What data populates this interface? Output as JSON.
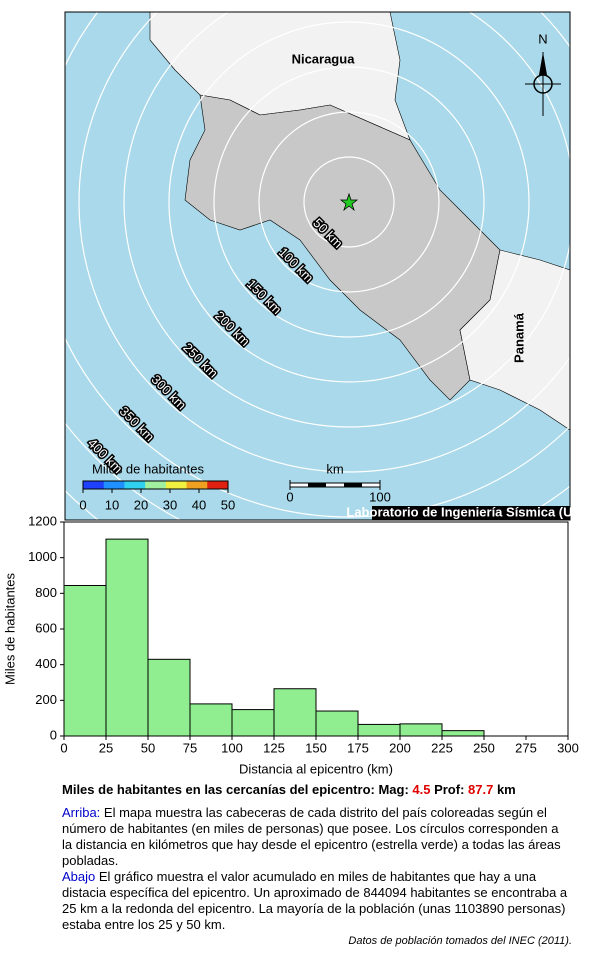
{
  "map": {
    "country_top": "Nicaragua",
    "country_right": "Panamá",
    "north": "N",
    "ring_labels": [
      "50 km",
      "100 km",
      "150 km",
      "200 km",
      "250 km",
      "300 km",
      "350 km",
      "400 km"
    ],
    "colorbar": {
      "title": "Miles de habitantes",
      "ticks": [
        0,
        10,
        20,
        30,
        40,
        50
      ]
    },
    "scale": {
      "title": "km",
      "ticks": [
        0,
        100
      ]
    },
    "credit": "Laboratorio de Ingeniería Sísmica (UCR)"
  },
  "chart_data": {
    "type": "histogram",
    "bins": [
      0,
      25,
      50,
      75,
      100,
      125,
      150,
      175,
      200,
      225,
      250
    ],
    "values": [
      844,
      1104,
      430,
      180,
      148,
      265,
      140,
      65,
      68,
      30
    ],
    "color": "#90ee90",
    "xlim": [
      0,
      300
    ],
    "xticks": [
      0,
      25,
      50,
      75,
      100,
      125,
      150,
      175,
      200,
      225,
      250,
      275,
      300
    ],
    "ylim": [
      0,
      1200
    ],
    "yticks": [
      0,
      200,
      400,
      600,
      800,
      1000,
      1200
    ],
    "xlabel": "Distancia al epicentro (km)",
    "ylabel": "Miles de habitantes"
  },
  "caption": {
    "title": "Miles de habitantes en las cercanías del epicentro: Mag: ",
    "mag": "4.5",
    "prof_label": " Prof: ",
    "prof": "87.7",
    "unit": " km",
    "p1_head": "Arriba:",
    "p1": " El mapa muestra las cabeceras de cada distrito del país coloreadas según el número de habitantes (en miles de personas) que posee.  Los círculos corresponden a la distancia en kilómetros que hay desde el epicentro (estrella verde) a todas las áreas pobladas.",
    "p2_head": "Abajo",
    "p2": " El gráfico muestra el valor acumulado en miles de habitantes que hay a una distacia específica del epicentro.  Un aproximado de 844094 habitantes se encontraba a 25 km a la redonda del epicentro.  La mayoría de la población (unas 1103890 personas) estaba entre los 25 y 50 km.",
    "source": "Datos de población tomados del INEC (2011)."
  }
}
